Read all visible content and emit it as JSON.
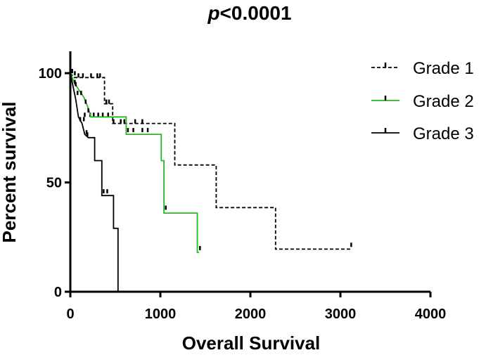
{
  "chart_data": {
    "type": "line",
    "subtype": "kaplan-meier-step",
    "title_prefix": "p",
    "title_suffix": "<0.0001",
    "xlabel": "Overall Survival",
    "ylabel": "Percent survival",
    "xlim": [
      0,
      4000
    ],
    "ylim": [
      0,
      110
    ],
    "xticks": [
      0,
      1000,
      2000,
      3000,
      4000
    ],
    "yticks": [
      0,
      50,
      100
    ],
    "grid": false,
    "legend_position": "top-right",
    "series": [
      {
        "name": "Grade 1",
        "color": "#000000",
        "dash": "dashed",
        "steps": [
          [
            0,
            100
          ],
          [
            40,
            98
          ],
          [
            380,
            98
          ],
          [
            380,
            86
          ],
          [
            470,
            86
          ],
          [
            470,
            77
          ],
          [
            1160,
            77
          ],
          [
            1160,
            58
          ],
          [
            1620,
            58
          ],
          [
            1620,
            38.5
          ],
          [
            2280,
            38.5
          ],
          [
            2280,
            19.5
          ],
          [
            3120,
            19.5
          ]
        ],
        "censors": [
          [
            20,
            100
          ],
          [
            50,
            99
          ],
          [
            90,
            98
          ],
          [
            140,
            98
          ],
          [
            230,
            98
          ],
          [
            300,
            98
          ],
          [
            330,
            98
          ],
          [
            400,
            86
          ],
          [
            430,
            86
          ],
          [
            160,
            80
          ],
          [
            220,
            80
          ],
          [
            260,
            80
          ],
          [
            310,
            80
          ],
          [
            360,
            80
          ],
          [
            420,
            80
          ],
          [
            480,
            77
          ],
          [
            560,
            77
          ],
          [
            600,
            77
          ],
          [
            720,
            77
          ],
          [
            800,
            77
          ],
          [
            3120,
            20.5
          ]
        ]
      },
      {
        "name": "Grade 2",
        "color": "#22bb22",
        "dash": "solid",
        "steps": [
          [
            0,
            100
          ],
          [
            40,
            96
          ],
          [
            100,
            92
          ],
          [
            150,
            89
          ],
          [
            190,
            85
          ],
          [
            230,
            80
          ],
          [
            620,
            80
          ],
          [
            620,
            72
          ],
          [
            1010,
            72
          ],
          [
            1010,
            60
          ],
          [
            1040,
            60
          ],
          [
            1040,
            36
          ],
          [
            1410,
            36
          ],
          [
            1410,
            18
          ],
          [
            1430,
            18
          ]
        ],
        "censors": [
          [
            20,
            100
          ],
          [
            60,
            94
          ],
          [
            120,
            90
          ],
          [
            170,
            86
          ],
          [
            200,
            82
          ],
          [
            640,
            73
          ],
          [
            700,
            73
          ],
          [
            800,
            73
          ],
          [
            860,
            73
          ],
          [
            1060,
            37.5
          ],
          [
            1440,
            19
          ]
        ]
      },
      {
        "name": "Grade 3",
        "color": "#000000",
        "dash": "solid",
        "steps": [
          [
            0,
            100
          ],
          [
            30,
            94
          ],
          [
            60,
            88
          ],
          [
            90,
            80
          ],
          [
            130,
            77
          ],
          [
            160,
            72
          ],
          [
            200,
            70.5
          ],
          [
            270,
            70.5
          ],
          [
            270,
            60
          ],
          [
            350,
            60
          ],
          [
            350,
            44
          ],
          [
            480,
            44
          ],
          [
            480,
            29
          ],
          [
            530,
            29
          ],
          [
            530,
            0
          ],
          [
            545,
            0
          ]
        ],
        "censors": [
          [
            15,
            100
          ],
          [
            50,
            95
          ],
          [
            80,
            90
          ],
          [
            110,
            78
          ],
          [
            150,
            78
          ],
          [
            180,
            72
          ],
          [
            190,
            71
          ],
          [
            370,
            45
          ],
          [
            410,
            45
          ]
        ]
      }
    ]
  }
}
